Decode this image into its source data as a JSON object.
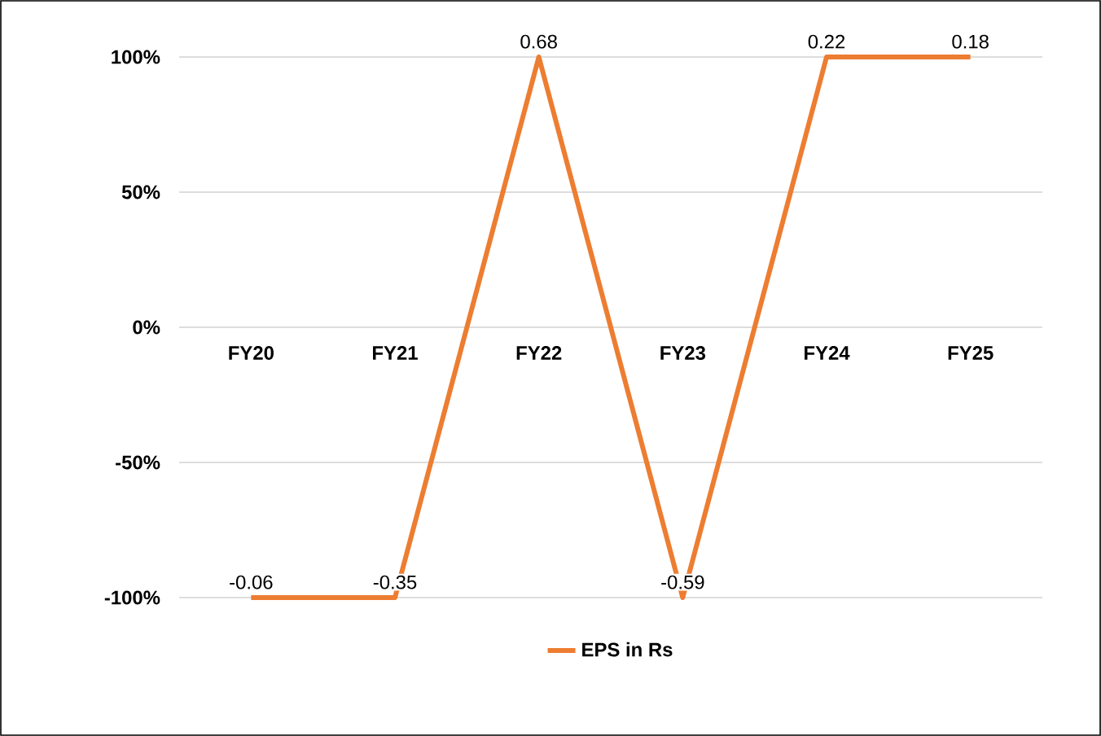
{
  "chart_data": {
    "type": "line",
    "categories": [
      "FY20",
      "FY21",
      "FY22",
      "FY23",
      "FY24",
      "FY25"
    ],
    "series": [
      {
        "name": "EPS in Rs",
        "color": "#ed7d31",
        "values": [
          -100,
          -100,
          100,
          -100,
          100,
          100
        ]
      }
    ],
    "annotations": [
      {
        "text": "-0.06",
        "x": "FY20",
        "y": -100
      },
      {
        "text": "-0.35",
        "x": "FY21",
        "y": -100
      },
      {
        "text": "0.68",
        "x": "FY22",
        "y": 100
      },
      {
        "text": "-0.59",
        "x": "FY23",
        "y": -100
      },
      {
        "text": "0.22",
        "x": "FY24",
        "y": 100
      },
      {
        "text": "0.18",
        "x": "FY25",
        "y": 100
      }
    ],
    "ylim": [
      -100,
      100
    ],
    "yticks": [
      {
        "value": -100,
        "label": "-100%"
      },
      {
        "value": -50,
        "label": "-50%"
      },
      {
        "value": 0,
        "label": "0%"
      },
      {
        "value": 50,
        "label": "50%"
      },
      {
        "value": 100,
        "label": "100%"
      }
    ],
    "grid": "y",
    "legend": "bottom",
    "marker": "none",
    "line_style": "solid"
  }
}
